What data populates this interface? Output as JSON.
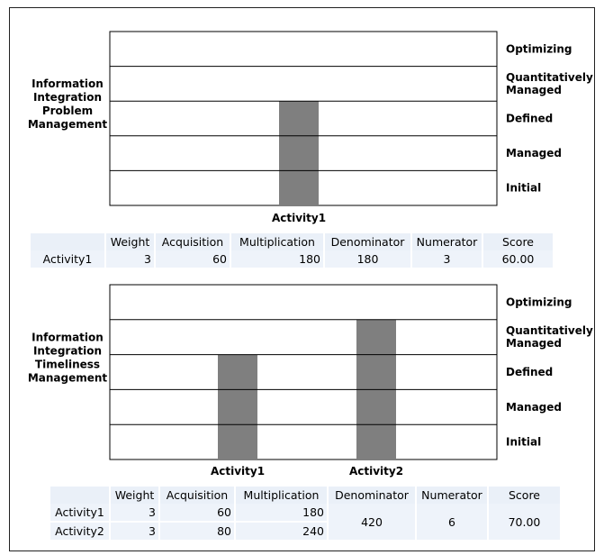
{
  "chart_data": [
    {
      "type": "bar",
      "title": "Information Integration Problem Management",
      "title_lines": [
        "Information",
        "Integration",
        "Problem",
        "Management"
      ],
      "levels": [
        "Optimizing",
        "Quantitatively Managed",
        "Defined",
        "Managed",
        "Initial"
      ],
      "level_lines": [
        [
          "Optimizing"
        ],
        [
          "Quantitatively",
          "Managed"
        ],
        [
          "Defined"
        ],
        [
          "Managed"
        ],
        [
          "Initial"
        ]
      ],
      "categories": [
        "Activity1"
      ],
      "values": [
        3
      ],
      "ylim": [
        0,
        5
      ],
      "grid": true
    },
    {
      "type": "bar",
      "title": "Information Integration Timeliness Management",
      "title_lines": [
        "Information",
        "Integration",
        "Timeliness",
        "Management"
      ],
      "levels": [
        "Optimizing",
        "Quantitatively Managed",
        "Defined",
        "Managed",
        "Initial"
      ],
      "level_lines": [
        [
          "Optimizing"
        ],
        [
          "Quantitatively",
          "Managed"
        ],
        [
          "Defined"
        ],
        [
          "Managed"
        ],
        [
          "Initial"
        ]
      ],
      "categories": [
        "Activity1",
        "Activity2"
      ],
      "values": [
        3,
        4
      ],
      "ylim": [
        0,
        5
      ],
      "grid": true
    }
  ],
  "tables": [
    {
      "headers": [
        "",
        "Weight",
        "Acquisition",
        "Multiplication",
        "Denominator",
        "Numerator",
        "Score"
      ],
      "rows": [
        {
          "activity": "Activity1",
          "weight": "3",
          "acquisition": "60",
          "multiplication": "180"
        }
      ],
      "denominator": "180",
      "numerator": "3",
      "score": "60.00"
    },
    {
      "headers": [
        "",
        "Weight",
        "Acquisition",
        "Multiplication",
        "Denominator",
        "Numerator",
        "Score"
      ],
      "rows": [
        {
          "activity": "Activity1",
          "weight": "3",
          "acquisition": "60",
          "multiplication": "180"
        },
        {
          "activity": "Activity2",
          "weight": "3",
          "acquisition": "80",
          "multiplication": "240"
        }
      ],
      "denominator": "420",
      "numerator": "6",
      "score": "70.00"
    }
  ],
  "colors": {
    "bar": "#7f7f7f",
    "grid": "#000000",
    "table_bg": "#eaf0f8"
  }
}
